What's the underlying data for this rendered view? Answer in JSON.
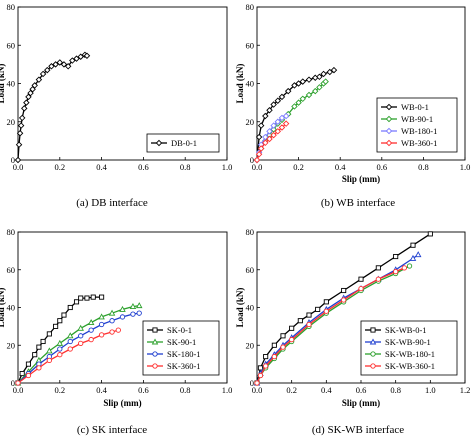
{
  "chart_data": [
    {
      "type": "line",
      "xlabel": "",
      "ylabel": "Load (kN)",
      "xlim": [
        0,
        1.0
      ],
      "ylim": [
        0,
        80
      ],
      "xticks": [
        "0.0",
        "0.2",
        "0.4",
        "0.6",
        "0.8",
        "1.0"
      ],
      "yticks": [
        "0",
        "20",
        "40",
        "60",
        "80"
      ],
      "legend_position": "bottom-right",
      "caption": "(a)  DB interface",
      "series": [
        {
          "name": "DB-0-1",
          "color": "#000000",
          "marker": "diamond",
          "x": [
            0,
            0.005,
            0.01,
            0.015,
            0.02,
            0.03,
            0.04,
            0.05,
            0.06,
            0.07,
            0.08,
            0.1,
            0.12,
            0.14,
            0.16,
            0.18,
            0.2,
            0.22,
            0.24,
            0.26,
            0.28,
            0.3,
            0.32,
            0.33
          ],
          "y": [
            0,
            8,
            14,
            18,
            22,
            27,
            30,
            33,
            35,
            37,
            39,
            42,
            45,
            47,
            49,
            50,
            51,
            50,
            49,
            52,
            53,
            54,
            55,
            54.5
          ]
        }
      ]
    },
    {
      "type": "line",
      "xlabel": "Slip (mm)",
      "ylabel": "Load (kN)",
      "xlim": [
        0,
        1.0
      ],
      "ylim": [
        0,
        80
      ],
      "xticks": [
        "0.0",
        "0.2",
        "0.4",
        "0.6",
        "0.8",
        "1.0"
      ],
      "yticks": [
        "0",
        "20",
        "40",
        "60",
        "80"
      ],
      "legend_position": "bottom-right",
      "caption": "(b)  WB interface",
      "series": [
        {
          "name": "WB-0-1",
          "color": "#000000",
          "marker": "diamond",
          "x": [
            0,
            0.01,
            0.02,
            0.04,
            0.06,
            0.08,
            0.1,
            0.12,
            0.15,
            0.18,
            0.2,
            0.22,
            0.25,
            0.28,
            0.3,
            0.32,
            0.35,
            0.37
          ],
          "y": [
            0,
            12,
            18,
            23,
            26,
            29,
            31,
            33,
            36,
            39,
            40,
            41,
            42,
            43,
            43.5,
            45,
            46,
            47
          ]
        },
        {
          "name": "WB-90-1",
          "color": "#2ca02c",
          "marker": "diamond",
          "x": [
            0,
            0.02,
            0.04,
            0.06,
            0.08,
            0.1,
            0.12,
            0.15,
            0.18,
            0.2,
            0.22,
            0.25,
            0.28,
            0.3,
            0.32,
            0.33
          ],
          "y": [
            0,
            6,
            10,
            13,
            16,
            19,
            21,
            24,
            28,
            30,
            32,
            34,
            36,
            38,
            40,
            41
          ]
        },
        {
          "name": "WB-180-1",
          "color": "#7b7bff",
          "marker": "diamond",
          "x": [
            0,
            0.01,
            0.02,
            0.04,
            0.06,
            0.08,
            0.1,
            0.12,
            0.14
          ],
          "y": [
            0,
            4,
            8,
            12,
            15,
            18,
            20,
            22,
            23
          ]
        },
        {
          "name": "WB-360-1",
          "color": "#ff3030",
          "marker": "diamond",
          "x": [
            0,
            0.01,
            0.02,
            0.04,
            0.06,
            0.08,
            0.1,
            0.12,
            0.14
          ],
          "y": [
            0,
            3,
            6,
            9,
            11,
            13,
            15,
            17,
            19
          ]
        }
      ]
    },
    {
      "type": "line",
      "xlabel": "Slip (mm)",
      "ylabel": "Load (kN)",
      "xlim": [
        0,
        1.0
      ],
      "ylim": [
        0,
        80
      ],
      "xticks": [
        "0.0",
        "0.2",
        "0.4",
        "0.6",
        "0.8",
        "1.0"
      ],
      "yticks": [
        "0",
        "20",
        "40",
        "60",
        "80"
      ],
      "legend_position": "bottom-right",
      "caption": "(c)  SK interface",
      "series": [
        {
          "name": "SK-0-1",
          "color": "#000000",
          "marker": "square",
          "x": [
            0,
            0.02,
            0.05,
            0.08,
            0.1,
            0.12,
            0.15,
            0.18,
            0.2,
            0.22,
            0.25,
            0.28,
            0.3,
            0.33,
            0.36,
            0.4
          ],
          "y": [
            0,
            5,
            10,
            15,
            19,
            22,
            26,
            30,
            33,
            36,
            40,
            43,
            45,
            45,
            45.5,
            45.5
          ]
        },
        {
          "name": "SK-90-1",
          "color": "#2ca02c",
          "marker": "triangle",
          "x": [
            0,
            0.05,
            0.1,
            0.15,
            0.2,
            0.25,
            0.3,
            0.35,
            0.4,
            0.45,
            0.5,
            0.55,
            0.58
          ],
          "y": [
            0,
            6,
            12,
            17,
            21,
            25,
            29,
            32,
            35,
            37,
            39,
            40.5,
            41
          ]
        },
        {
          "name": "SK-180-1",
          "color": "#1f3fd0",
          "marker": "circle",
          "x": [
            0,
            0.05,
            0.1,
            0.15,
            0.2,
            0.25,
            0.3,
            0.35,
            0.4,
            0.45,
            0.5,
            0.55,
            0.58
          ],
          "y": [
            0,
            5,
            10,
            14,
            18,
            22,
            25,
            28,
            31,
            33,
            35,
            36.5,
            37
          ]
        },
        {
          "name": "SK-360-1",
          "color": "#ff3030",
          "marker": "circle",
          "x": [
            0,
            0.05,
            0.1,
            0.15,
            0.2,
            0.25,
            0.3,
            0.35,
            0.4,
            0.45,
            0.48
          ],
          "y": [
            0,
            4,
            8,
            12,
            15,
            18,
            21,
            23,
            25.5,
            27,
            28
          ]
        }
      ]
    },
    {
      "type": "line",
      "xlabel": "Slip (mm)",
      "ylabel": "Load (kN)",
      "xlim": [
        0,
        1.2
      ],
      "ylim": [
        0,
        80
      ],
      "xticks": [
        "0.0",
        "0.2",
        "0.4",
        "0.6",
        "0.8",
        "1.0",
        "1.2"
      ],
      "yticks": [
        "0",
        "20",
        "40",
        "60",
        "80"
      ],
      "legend_position": "bottom-right",
      "caption": "(d) SK-WB interface",
      "series": [
        {
          "name": "SK-WB-0-1",
          "color": "#000000",
          "marker": "square",
          "x": [
            0,
            0.02,
            0.05,
            0.1,
            0.15,
            0.2,
            0.25,
            0.3,
            0.35,
            0.4,
            0.5,
            0.6,
            0.7,
            0.8,
            0.9,
            1.0
          ],
          "y": [
            0,
            8,
            14,
            20,
            25,
            29,
            33,
            36,
            39,
            43,
            49,
            55,
            61,
            67,
            73,
            79
          ]
        },
        {
          "name": "SK-WB-90-1",
          "color": "#1f3fd0",
          "marker": "triangle",
          "x": [
            0,
            0.02,
            0.05,
            0.1,
            0.15,
            0.2,
            0.3,
            0.4,
            0.5,
            0.6,
            0.7,
            0.8,
            0.9,
            0.93
          ],
          "y": [
            0,
            5,
            10,
            15,
            20,
            24,
            32,
            39,
            45,
            50,
            55,
            60,
            66,
            68
          ]
        },
        {
          "name": "SK-WB-180-1",
          "color": "#2ca02c",
          "marker": "circle",
          "x": [
            0,
            0.02,
            0.05,
            0.1,
            0.15,
            0.2,
            0.3,
            0.4,
            0.5,
            0.6,
            0.7,
            0.8,
            0.88
          ],
          "y": [
            0,
            4,
            8,
            13,
            18,
            22,
            30,
            37,
            43,
            49,
            54,
            58,
            62
          ]
        },
        {
          "name": "SK-WB-360-1",
          "color": "#ff3030",
          "marker": "circle",
          "x": [
            0,
            0.02,
            0.05,
            0.1,
            0.15,
            0.2,
            0.3,
            0.4,
            0.5,
            0.6,
            0.7,
            0.8,
            0.85
          ],
          "y": [
            0,
            4,
            9,
            14,
            19,
            23,
            31,
            38,
            44,
            50,
            55,
            59,
            61
          ]
        }
      ]
    }
  ]
}
